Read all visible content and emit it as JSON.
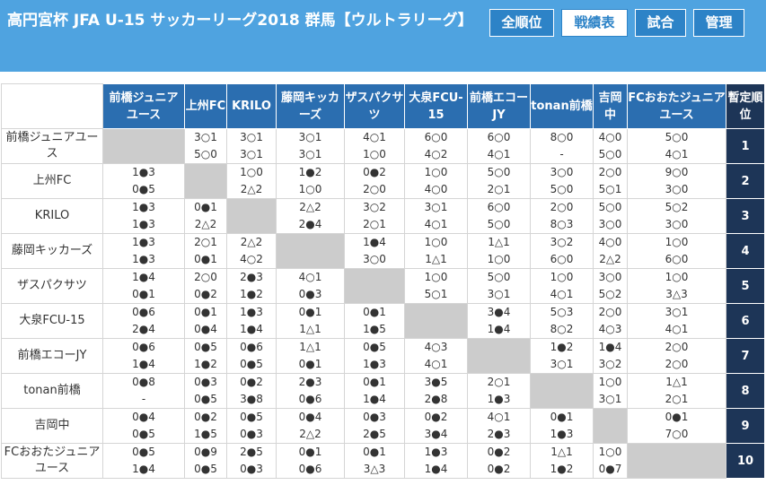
{
  "header": {
    "title": "高円宮杯 JFA U-15 サッカーリーグ2018 群馬【ウルトラリーグ】",
    "nav": [
      {
        "label": "全順位",
        "active": false
      },
      {
        "label": "戦績表",
        "active": true
      },
      {
        "label": "試合",
        "active": false
      },
      {
        "label": "管理",
        "active": false
      }
    ]
  },
  "table": {
    "rank_header": "暫定順位",
    "columns": [
      "前橋ジュニアユース",
      "上州FC",
      "KRILO",
      "藤岡キッカーズ",
      "ザスパクサツ",
      "大泉FCU-15",
      "前橋エコーJY",
      "tonan前橋",
      "吉岡中",
      "FCおおたジュニアユース"
    ],
    "rows": [
      {
        "team": "前橋ジュニアユース",
        "rank": "1",
        "results": [
          null,
          [
            "3○1",
            "5○0"
          ],
          [
            "3○1",
            "3○1"
          ],
          [
            "3○1",
            "3○1"
          ],
          [
            "4○1",
            "1○0"
          ],
          [
            "6○0",
            "4○2"
          ],
          [
            "6○0",
            "4○1"
          ],
          [
            "8○0",
            "-"
          ],
          [
            "4○0",
            "5○0"
          ],
          [
            "5○0",
            "4○1"
          ]
        ]
      },
      {
        "team": "上州FC",
        "rank": "2",
        "results": [
          [
            "1●3",
            "0●5"
          ],
          null,
          [
            "1○0",
            "2△2"
          ],
          [
            "1●2",
            "1○0"
          ],
          [
            "0●2",
            "2○0"
          ],
          [
            "1○0",
            "4○0"
          ],
          [
            "5○0",
            "2○1"
          ],
          [
            "3○0",
            "5○0"
          ],
          [
            "2○0",
            "5○1"
          ],
          [
            "9○0",
            "3○0"
          ]
        ]
      },
      {
        "team": "KRILO",
        "rank": "3",
        "results": [
          [
            "1●3",
            "1●3"
          ],
          [
            "0●1",
            "2△2"
          ],
          null,
          [
            "2△2",
            "2●4"
          ],
          [
            "3○2",
            "2○1"
          ],
          [
            "3○1",
            "4○1"
          ],
          [
            "6○0",
            "5○0"
          ],
          [
            "2○0",
            "8○3"
          ],
          [
            "5○0",
            "3○0"
          ],
          [
            "5○2",
            "3○0"
          ]
        ]
      },
      {
        "team": "藤岡キッカーズ",
        "rank": "4",
        "results": [
          [
            "1●3",
            "1●3"
          ],
          [
            "2○1",
            "0●1"
          ],
          [
            "2△2",
            "4○2"
          ],
          null,
          [
            "1●4",
            "3○0"
          ],
          [
            "1○0",
            "1△1"
          ],
          [
            "1△1",
            "1○0"
          ],
          [
            "3○2",
            "6○0"
          ],
          [
            "4○0",
            "2△2"
          ],
          [
            "1○0",
            "6○0"
          ]
        ]
      },
      {
        "team": "ザスパクサツ",
        "rank": "5",
        "results": [
          [
            "1●4",
            "0●1"
          ],
          [
            "2○0",
            "0●2"
          ],
          [
            "2●3",
            "1●2"
          ],
          [
            "4○1",
            "0●3"
          ],
          null,
          [
            "1○0",
            "5○1"
          ],
          [
            "5○0",
            "3○1"
          ],
          [
            "1○0",
            "4○1"
          ],
          [
            "3○0",
            "5○2"
          ],
          [
            "1○0",
            "3△3"
          ]
        ]
      },
      {
        "team": "大泉FCU-15",
        "rank": "6",
        "results": [
          [
            "0●6",
            "2●4"
          ],
          [
            "0●1",
            "0●4"
          ],
          [
            "1●3",
            "1●4"
          ],
          [
            "0●1",
            "1△1"
          ],
          [
            "0●1",
            "1●5"
          ],
          null,
          [
            "3●4",
            "1●4"
          ],
          [
            "5○3",
            "8○2"
          ],
          [
            "2○0",
            "4○3"
          ],
          [
            "3○1",
            "4○1"
          ]
        ]
      },
      {
        "team": "前橋エコーJY",
        "rank": "7",
        "results": [
          [
            "0●6",
            "1●4"
          ],
          [
            "0●5",
            "1●2"
          ],
          [
            "0●6",
            "0●5"
          ],
          [
            "1△1",
            "0●1"
          ],
          [
            "0●5",
            "1●3"
          ],
          [
            "4○3",
            "4○1"
          ],
          null,
          [
            "1●2",
            "3○1"
          ],
          [
            "1●4",
            "3○2"
          ],
          [
            "2○0",
            "2○0"
          ]
        ]
      },
      {
        "team": "tonan前橋",
        "rank": "8",
        "results": [
          [
            "0●8",
            "-"
          ],
          [
            "0●3",
            "0●5"
          ],
          [
            "0●2",
            "3●8"
          ],
          [
            "2●3",
            "0●6"
          ],
          [
            "0●1",
            "1●4"
          ],
          [
            "3●5",
            "2●8"
          ],
          [
            "2○1",
            "1●3"
          ],
          null,
          [
            "1○0",
            "3○1"
          ],
          [
            "1△1",
            "2○1"
          ]
        ]
      },
      {
        "team": "吉岡中",
        "rank": "9",
        "results": [
          [
            "0●4",
            "0●5"
          ],
          [
            "0●2",
            "1●5"
          ],
          [
            "0●5",
            "0●3"
          ],
          [
            "0●4",
            "2△2"
          ],
          [
            "0●3",
            "2●5"
          ],
          [
            "0●2",
            "3●4"
          ],
          [
            "4○1",
            "2●3"
          ],
          [
            "0●1",
            "1●3"
          ],
          null,
          [
            "0●1",
            "7○0"
          ]
        ]
      },
      {
        "team": "FCおおたジュニアユース",
        "rank": "10",
        "results": [
          [
            "0●5",
            "1●4"
          ],
          [
            "0●9",
            "0●5"
          ],
          [
            "2●5",
            "0●3"
          ],
          [
            "0●1",
            "0●6"
          ],
          [
            "0●1",
            "3△3"
          ],
          [
            "1●3",
            "1●4"
          ],
          [
            "0●2",
            "0●2"
          ],
          [
            "1△1",
            "1●2"
          ],
          [
            "1○0",
            "0●7"
          ],
          null
        ]
      }
    ]
  }
}
